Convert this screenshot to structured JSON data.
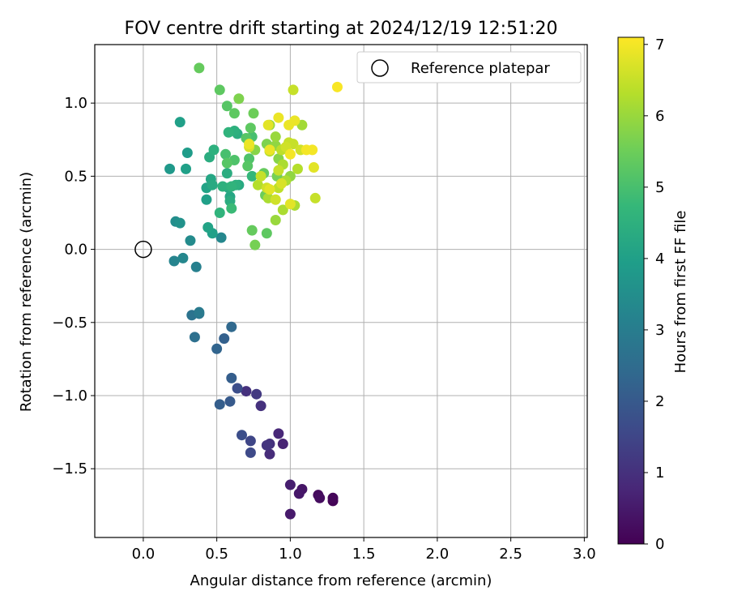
{
  "chart_data": {
    "type": "scatter",
    "title": "FOV centre drift starting at 2024/12/19 12:51:20",
    "xlabel": "Angular distance from reference (arcmin)",
    "ylabel": "Rotation from reference (arcmin)",
    "xlim": [
      -0.33,
      3.02
    ],
    "ylim": [
      -1.97,
      1.4
    ],
    "xticks": [
      "0.0",
      "0.5",
      "1.0",
      "1.5",
      "2.0",
      "2.5",
      "3.0"
    ],
    "xtick_values": [
      0,
      0.5,
      1,
      1.5,
      2,
      2.5,
      3
    ],
    "yticks": [
      "−1.5",
      "−1.0",
      "−0.5",
      "0.0",
      "0.5",
      "1.0"
    ],
    "ytick_values": [
      -1.5,
      -1.0,
      -0.5,
      0,
      0.5,
      1.0
    ],
    "grid": true,
    "legend": {
      "position": "top-right",
      "entries": [
        {
          "label": "Reference platepar",
          "marker": "open-circle"
        }
      ]
    },
    "reference_point": {
      "x": 0.0,
      "y": 0.0
    },
    "colorbar": {
      "label": "Hours from first FF file",
      "range": [
        0,
        7.1
      ],
      "ticks": [
        "0",
        "1",
        "2",
        "3",
        "4",
        "5",
        "6",
        "7"
      ],
      "tick_values": [
        0,
        1,
        2,
        3,
        4,
        5,
        6,
        7
      ],
      "colormap": "viridis",
      "colors": [
        "#440154",
        "#482878",
        "#3e4989",
        "#31688e",
        "#26828e",
        "#1f9e89",
        "#35b779",
        "#6ece58",
        "#b5de2b",
        "#fde725"
      ]
    },
    "series": [
      {
        "points": [
          {
            "x": 1.29,
            "y": -1.72,
            "t": 0.05
          },
          {
            "x": 1.29,
            "y": -1.7,
            "t": 0.1
          },
          {
            "x": 1.19,
            "y": -1.68,
            "t": 0.2
          },
          {
            "x": 1.2,
            "y": -1.7,
            "t": 0.25
          },
          {
            "x": 1.08,
            "y": -1.64,
            "t": 0.4
          },
          {
            "x": 1.06,
            "y": -1.67,
            "t": 0.45
          },
          {
            "x": 1.0,
            "y": -1.61,
            "t": 0.6
          },
          {
            "x": 1.0,
            "y": -1.81,
            "t": 0.5
          },
          {
            "x": 0.95,
            "y": -1.33,
            "t": 0.7
          },
          {
            "x": 0.92,
            "y": -1.26,
            "t": 0.8
          },
          {
            "x": 0.86,
            "y": -1.4,
            "t": 0.9
          },
          {
            "x": 0.86,
            "y": -1.33,
            "t": 1.0
          },
          {
            "x": 0.84,
            "y": -1.34,
            "t": 1.1
          },
          {
            "x": 0.8,
            "y": -1.07,
            "t": 1.0
          },
          {
            "x": 0.77,
            "y": -0.99,
            "t": 1.2
          },
          {
            "x": 0.7,
            "y": -0.97,
            "t": 1.0
          },
          {
            "x": 0.73,
            "y": -1.31,
            "t": 1.5
          },
          {
            "x": 0.73,
            "y": -1.39,
            "t": 1.6
          },
          {
            "x": 0.67,
            "y": -1.27,
            "t": 1.7
          },
          {
            "x": 0.64,
            "y": -0.95,
            "t": 1.7
          },
          {
            "x": 0.6,
            "y": -0.88,
            "t": 2.1
          },
          {
            "x": 0.59,
            "y": -1.04,
            "t": 2.0
          },
          {
            "x": 0.52,
            "y": -1.06,
            "t": 2.1
          },
          {
            "x": 0.55,
            "y": -0.61,
            "t": 2.2
          },
          {
            "x": 0.5,
            "y": -0.68,
            "t": 2.3
          },
          {
            "x": 0.6,
            "y": -0.53,
            "t": 2.4
          },
          {
            "x": 0.35,
            "y": -0.6,
            "t": 2.6
          },
          {
            "x": 0.33,
            "y": -0.45,
            "t": 2.7
          },
          {
            "x": 0.38,
            "y": -0.43,
            "t": 2.9
          },
          {
            "x": 0.38,
            "y": -0.44,
            "t": 2.8
          },
          {
            "x": 0.36,
            "y": -0.12,
            "t": 3.1
          },
          {
            "x": 0.21,
            "y": -0.08,
            "t": 3.2
          },
          {
            "x": 0.27,
            "y": -0.06,
            "t": 3.3
          },
          {
            "x": 0.32,
            "y": 0.06,
            "t": 3.4
          },
          {
            "x": 0.22,
            "y": 0.19,
            "t": 3.5
          },
          {
            "x": 0.25,
            "y": 0.18,
            "t": 3.6
          },
          {
            "x": 0.53,
            "y": 0.08,
            "t": 3.3
          },
          {
            "x": 0.47,
            "y": 0.11,
            "t": 4.0
          },
          {
            "x": 0.44,
            "y": 0.15,
            "t": 4.1
          },
          {
            "x": 0.18,
            "y": 0.55,
            "t": 3.8
          },
          {
            "x": 0.29,
            "y": 0.55,
            "t": 4.0
          },
          {
            "x": 0.3,
            "y": 0.66,
            "t": 3.9
          },
          {
            "x": 0.25,
            "y": 0.87,
            "t": 4.0
          },
          {
            "x": 0.43,
            "y": 0.34,
            "t": 4.0
          },
          {
            "x": 0.43,
            "y": 0.42,
            "t": 4.1
          },
          {
            "x": 0.46,
            "y": 0.48,
            "t": 4.2
          },
          {
            "x": 0.47,
            "y": 0.44,
            "t": 4.3
          },
          {
            "x": 0.45,
            "y": 0.63,
            "t": 4.4
          },
          {
            "x": 0.48,
            "y": 0.68,
            "t": 4.5
          },
          {
            "x": 0.52,
            "y": 0.25,
            "t": 4.6
          },
          {
            "x": 0.54,
            "y": 0.43,
            "t": 4.5
          },
          {
            "x": 0.57,
            "y": 0.52,
            "t": 4.4
          },
          {
            "x": 0.58,
            "y": 0.42,
            "t": 4.3
          },
          {
            "x": 0.59,
            "y": 0.33,
            "t": 4.4
          },
          {
            "x": 0.59,
            "y": 0.36,
            "t": 4.2
          },
          {
            "x": 0.6,
            "y": 0.28,
            "t": 4.8
          },
          {
            "x": 0.6,
            "y": 0.43,
            "t": 4.6
          },
          {
            "x": 0.63,
            "y": 0.44,
            "t": 4.5
          },
          {
            "x": 0.65,
            "y": 0.44,
            "t": 4.3
          },
          {
            "x": 0.58,
            "y": 0.8,
            "t": 4.6
          },
          {
            "x": 0.62,
            "y": 0.81,
            "t": 4.5
          },
          {
            "x": 0.64,
            "y": 0.79,
            "t": 4.4
          },
          {
            "x": 0.56,
            "y": 0.65,
            "t": 5.0
          },
          {
            "x": 0.57,
            "y": 0.59,
            "t": 5.2
          },
          {
            "x": 0.62,
            "y": 0.61,
            "t": 5.1
          },
          {
            "x": 0.52,
            "y": 1.09,
            "t": 5.3
          },
          {
            "x": 0.38,
            "y": 1.24,
            "t": 5.4
          },
          {
            "x": 0.57,
            "y": 0.98,
            "t": 5.2
          },
          {
            "x": 0.62,
            "y": 0.93,
            "t": 5.3
          },
          {
            "x": 0.65,
            "y": 1.03,
            "t": 5.7
          },
          {
            "x": 0.7,
            "y": 0.76,
            "t": 5.2
          },
          {
            "x": 0.71,
            "y": 0.57,
            "t": 5.2
          },
          {
            "x": 0.72,
            "y": 0.62,
            "t": 5.1
          },
          {
            "x": 0.74,
            "y": 0.5,
            "t": 4.7
          },
          {
            "x": 0.74,
            "y": 0.77,
            "t": 5.0
          },
          {
            "x": 0.73,
            "y": 0.83,
            "t": 5.3
          },
          {
            "x": 0.75,
            "y": 0.93,
            "t": 5.5
          },
          {
            "x": 0.74,
            "y": 0.13,
            "t": 5.4
          },
          {
            "x": 0.76,
            "y": 0.03,
            "t": 5.6
          },
          {
            "x": 0.84,
            "y": 0.11,
            "t": 5.3
          },
          {
            "x": 0.76,
            "y": 0.68,
            "t": 5.8
          },
          {
            "x": 0.78,
            "y": 0.44,
            "t": 6.3
          },
          {
            "x": 0.8,
            "y": 0.5,
            "t": 6.5
          },
          {
            "x": 0.82,
            "y": 0.52,
            "t": 5.4
          },
          {
            "x": 0.83,
            "y": 0.37,
            "t": 5.5
          },
          {
            "x": 0.85,
            "y": 0.35,
            "t": 6.2
          },
          {
            "x": 0.86,
            "y": 0.41,
            "t": 6.8
          },
          {
            "x": 0.84,
            "y": 0.42,
            "t": 6.6
          },
          {
            "x": 0.84,
            "y": 0.72,
            "t": 5.7
          },
          {
            "x": 0.86,
            "y": 0.67,
            "t": 6.3
          },
          {
            "x": 0.85,
            "y": 0.85,
            "t": 6.8
          },
          {
            "x": 0.86,
            "y": 0.85,
            "t": 6.0
          },
          {
            "x": 0.9,
            "y": 0.71,
            "t": 5.9
          },
          {
            "x": 0.9,
            "y": 0.77,
            "t": 6.0
          },
          {
            "x": 0.91,
            "y": 0.5,
            "t": 5.6
          },
          {
            "x": 0.92,
            "y": 0.54,
            "t": 6.5
          },
          {
            "x": 0.92,
            "y": 0.42,
            "t": 6.4
          },
          {
            "x": 0.94,
            "y": 0.45,
            "t": 6.7
          },
          {
            "x": 0.9,
            "y": 0.34,
            "t": 6.6
          },
          {
            "x": 0.9,
            "y": 0.2,
            "t": 6.0
          },
          {
            "x": 0.95,
            "y": 0.27,
            "t": 6.2
          },
          {
            "x": 0.92,
            "y": 0.9,
            "t": 6.9
          },
          {
            "x": 0.92,
            "y": 0.62,
            "t": 5.8
          },
          {
            "x": 0.95,
            "y": 0.58,
            "t": 6.2
          },
          {
            "x": 0.94,
            "y": 0.68,
            "t": 6.4
          },
          {
            "x": 0.97,
            "y": 0.7,
            "t": 6.6
          },
          {
            "x": 0.99,
            "y": 0.73,
            "t": 6.5
          },
          {
            "x": 1.0,
            "y": 0.65,
            "t": 7.0
          },
          {
            "x": 1.0,
            "y": 0.5,
            "t": 5.9
          },
          {
            "x": 0.97,
            "y": 0.47,
            "t": 6.2
          },
          {
            "x": 0.99,
            "y": 0.85,
            "t": 6.9
          },
          {
            "x": 1.03,
            "y": 0.88,
            "t": 6.9
          },
          {
            "x": 1.0,
            "y": 0.31,
            "t": 6.8
          },
          {
            "x": 1.03,
            "y": 0.3,
            "t": 6.2
          },
          {
            "x": 1.02,
            "y": 0.72,
            "t": 6.5
          },
          {
            "x": 1.05,
            "y": 0.55,
            "t": 6.3
          },
          {
            "x": 1.07,
            "y": 0.68,
            "t": 6.6
          },
          {
            "x": 1.08,
            "y": 0.85,
            "t": 6.1
          },
          {
            "x": 1.02,
            "y": 1.09,
            "t": 6.5
          },
          {
            "x": 1.11,
            "y": 0.68,
            "t": 7.0
          },
          {
            "x": 1.15,
            "y": 0.68,
            "t": 7.0
          },
          {
            "x": 1.16,
            "y": 0.56,
            "t": 6.8
          },
          {
            "x": 1.17,
            "y": 0.35,
            "t": 6.5
          },
          {
            "x": 0.86,
            "y": 0.68,
            "t": 6.9
          },
          {
            "x": 0.72,
            "y": 0.72,
            "t": 6.9
          },
          {
            "x": 0.72,
            "y": 0.7,
            "t": 6.7
          },
          {
            "x": 1.32,
            "y": 1.11,
            "t": 7.05
          }
        ]
      }
    ]
  }
}
